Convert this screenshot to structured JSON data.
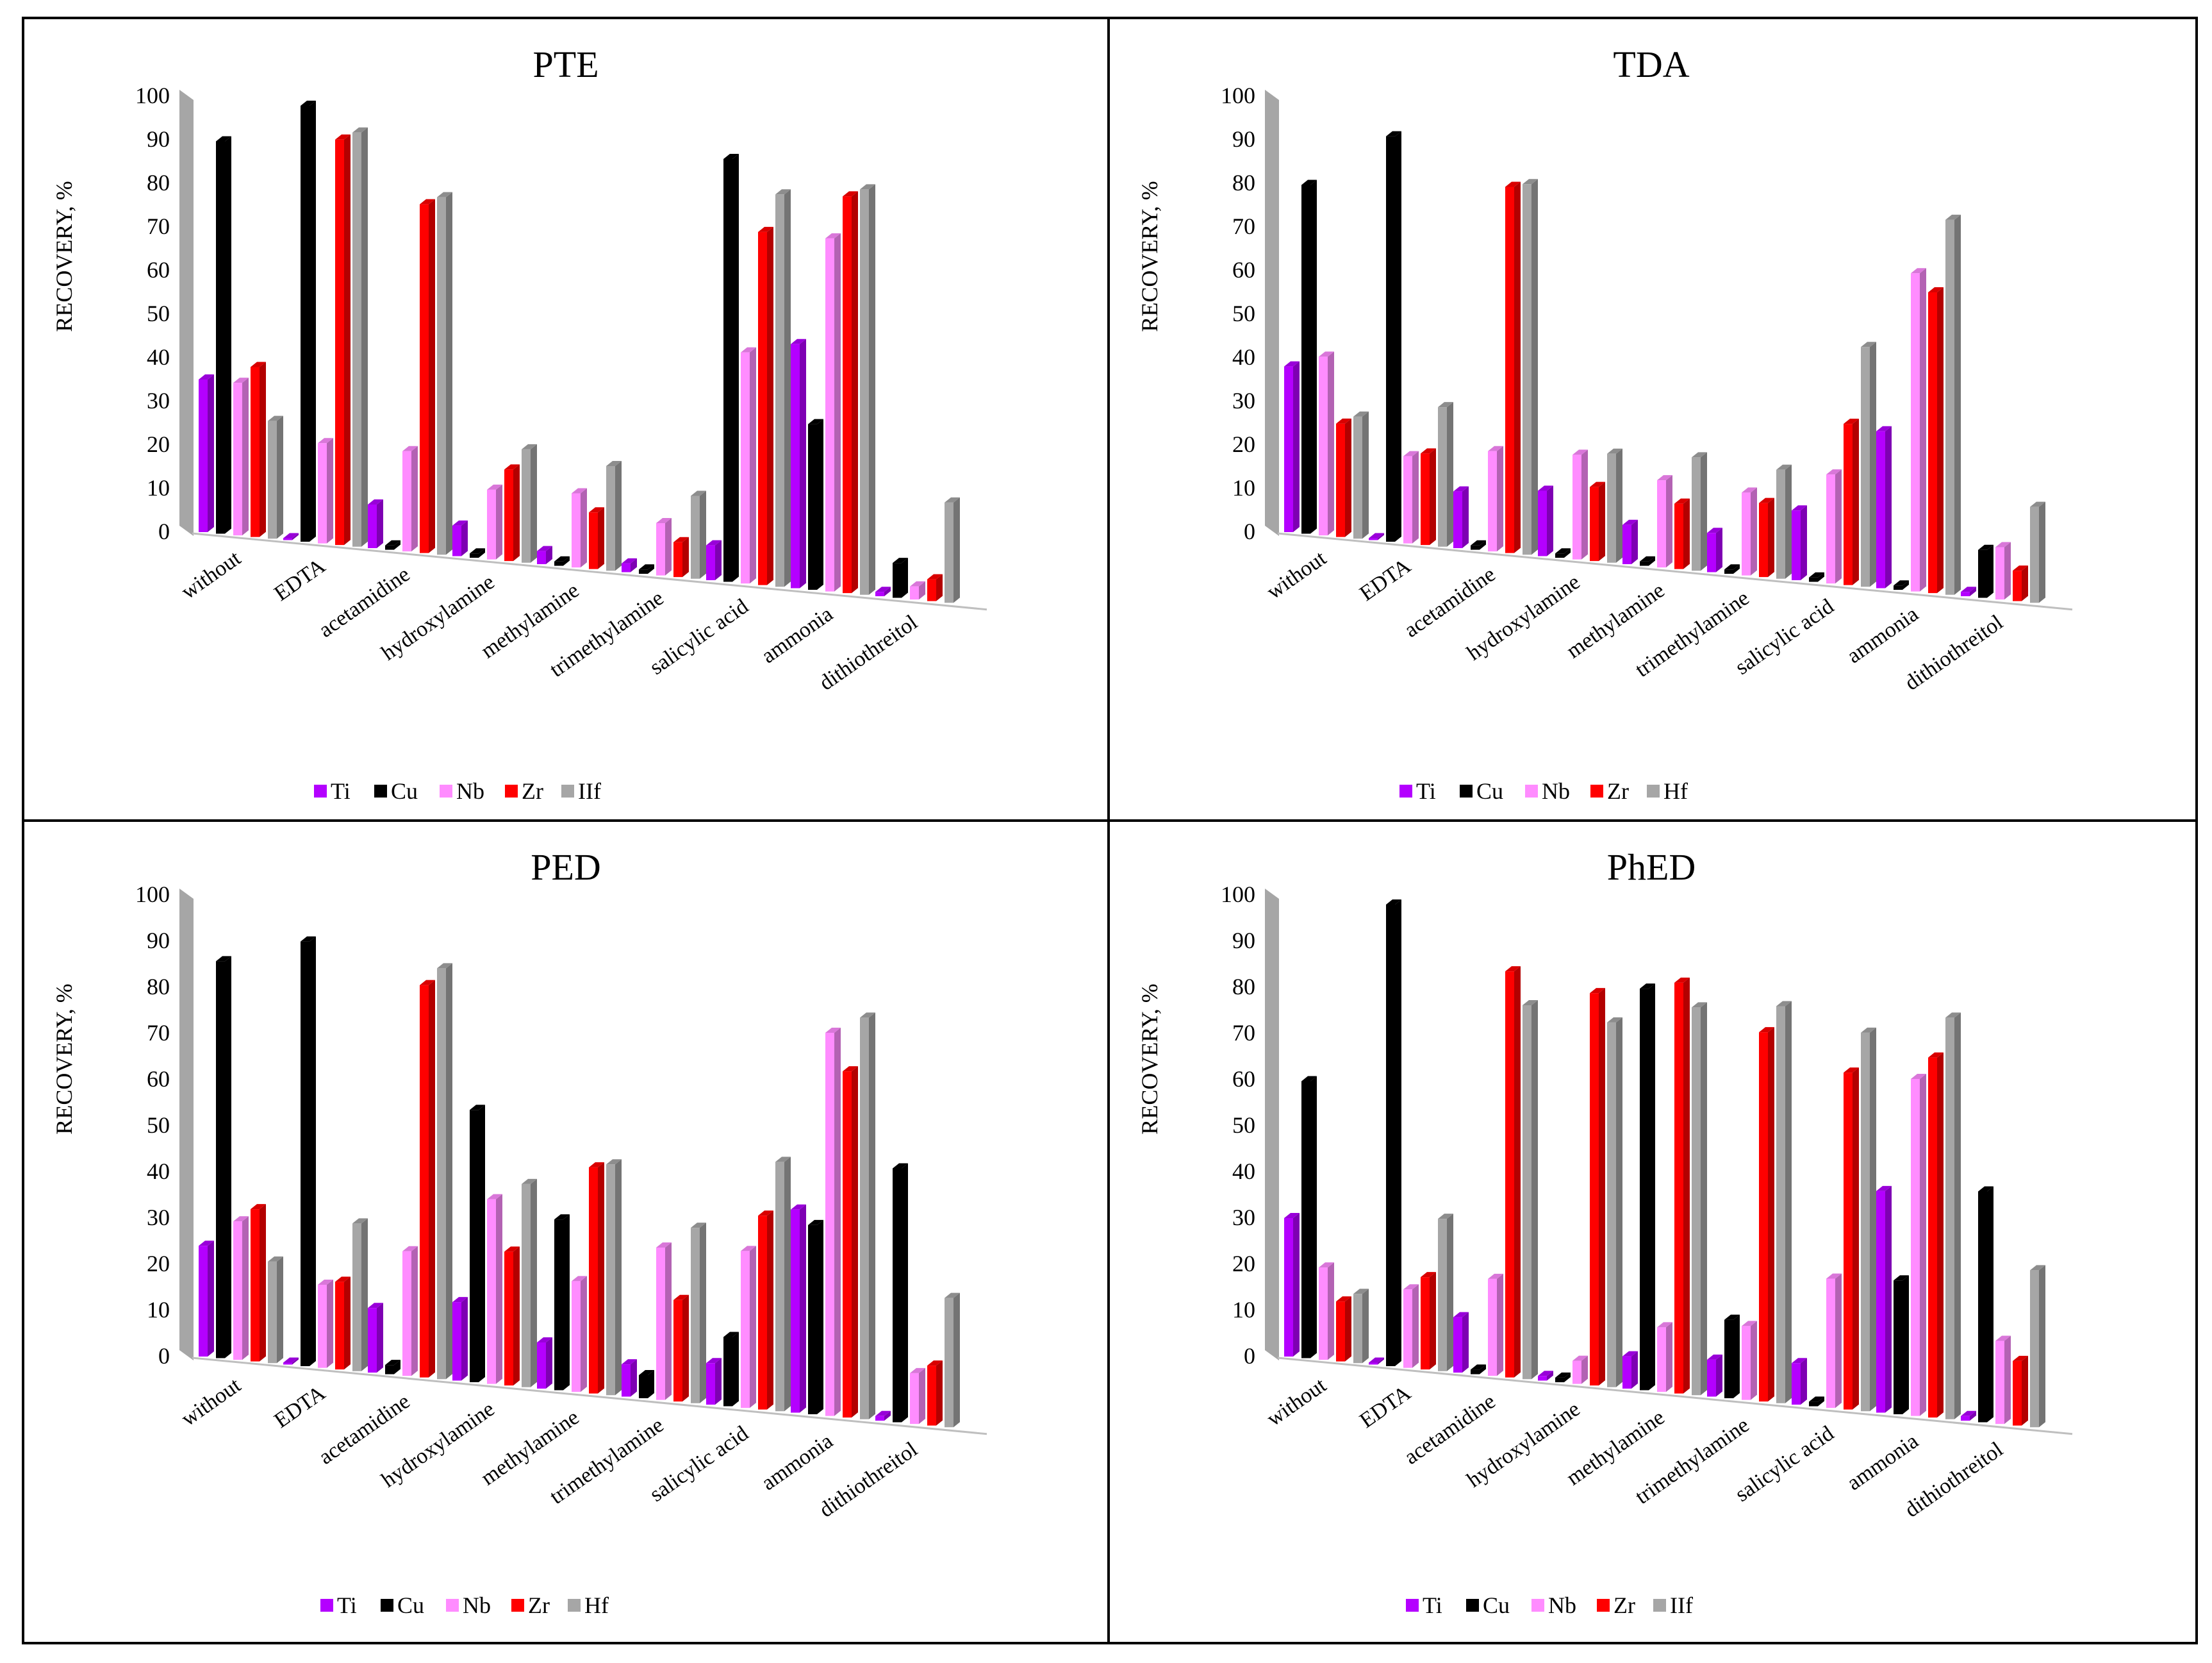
{
  "figure": {
    "border_color": "#000000"
  },
  "colors": {
    "Ti": "#b400ff",
    "Cu": "#000000",
    "Nb": "#ff8cff",
    "Zr": "#ff0000",
    "Hf": "#a6a6a6"
  },
  "chart_data": [
    {
      "type": "bar",
      "title": "PTE",
      "ylabel": "RECOVERY, %",
      "ylim": [
        0,
        100
      ],
      "yticks": [
        "0",
        "10",
        "20",
        "30",
        "40",
        "50",
        "60",
        "70",
        "80",
        "90",
        "100"
      ],
      "legend_position": "bottom",
      "legend_labels": [
        "Ti",
        "Cu",
        "Nb",
        "Zr",
        "IIf"
      ],
      "categories": [
        "without",
        "EDTA",
        "acetamidine",
        "hydroxylamine",
        "methylamine",
        "trimethylamine",
        "salicylic acid",
        "ammonia",
        "dithiothreitol"
      ],
      "series": [
        {
          "name": "Ti",
          "values": [
            35,
            0,
            10,
            7,
            3,
            2,
            8,
            56,
            1
          ]
        },
        {
          "name": "Cu",
          "values": [
            90,
            100,
            1,
            1,
            1,
            1,
            97,
            38,
            8
          ]
        },
        {
          "name": "Nb",
          "values": [
            35,
            23,
            23,
            16,
            17,
            12,
            53,
            81,
            3
          ]
        },
        {
          "name": "Zr",
          "values": [
            39,
            93,
            80,
            21,
            13,
            8,
            81,
            91,
            5
          ]
        },
        {
          "name": "Hf",
          "values": [
            27,
            95,
            82,
            26,
            24,
            19,
            90,
            93,
            23
          ]
        }
      ]
    },
    {
      "type": "bar",
      "title": "TDA",
      "ylabel": "RECOVERY, %",
      "ylim": [
        0,
        100
      ],
      "yticks": [
        "0",
        "10",
        "20",
        "30",
        "40",
        "50",
        "60",
        "70",
        "80",
        "90",
        "100"
      ],
      "legend_position": "bottom",
      "legend_labels": [
        "Ti",
        "Cu",
        "Nb",
        "Zr",
        "Hf"
      ],
      "categories": [
        "without",
        "EDTA",
        "acetamidine",
        "hydroxylamine",
        "methylamine",
        "trimethylamine",
        "salicylic acid",
        "ammonia",
        "dithiothreitol"
      ],
      "series": [
        {
          "name": "Ti",
          "values": [
            38,
            0,
            13,
            15,
            9,
            9,
            16,
            36,
            1
          ]
        },
        {
          "name": "Cu",
          "values": [
            80,
            93,
            1,
            1,
            1,
            1,
            1,
            1,
            11
          ]
        },
        {
          "name": "Nb",
          "values": [
            41,
            20,
            23,
            24,
            20,
            19,
            25,
            73,
            12
          ]
        },
        {
          "name": "Zr",
          "values": [
            26,
            21,
            84,
            17,
            15,
            17,
            37,
            69,
            7
          ]
        },
        {
          "name": "Hf",
          "values": [
            28,
            32,
            85,
            25,
            26,
            25,
            55,
            86,
            22
          ]
        }
      ]
    },
    {
      "type": "bar",
      "title": "PED",
      "ylabel": "RECOVERY,  %",
      "ylim": [
        0,
        100
      ],
      "yticks": [
        "0",
        "10",
        "20",
        "30",
        "40",
        "50",
        "60",
        "70",
        "80",
        "90",
        "100"
      ],
      "legend_position": "bottom",
      "legend_labels": [
        "Ti",
        "Cu",
        "Nb",
        "Zr",
        "Hf"
      ],
      "categories": [
        "without",
        "EDTA",
        "acetamidine",
        "hydroxylamine",
        "methylamine",
        "trimethylamine",
        "salicylic acid",
        "ammonia",
        "dithiothreitol"
      ],
      "series": [
        {
          "name": "Ti",
          "values": [
            24,
            0,
            14,
            17,
            10,
            7,
            9,
            44,
            1
          ]
        },
        {
          "name": "Cu",
          "values": [
            86,
            92,
            2,
            59,
            37,
            5,
            15,
            41,
            55
          ]
        },
        {
          "name": "Nb",
          "values": [
            30,
            18,
            27,
            40,
            24,
            33,
            34,
            83,
            11
          ]
        },
        {
          "name": "Zr",
          "values": [
            33,
            19,
            85,
            29,
            49,
            22,
            42,
            75,
            13
          ]
        },
        {
          "name": "Hf",
          "values": [
            22,
            32,
            89,
            44,
            50,
            38,
            54,
            87,
            28
          ]
        }
      ]
    },
    {
      "type": "bar",
      "title": "PhED",
      "ylabel": "RECOVERY, %",
      "ylim": [
        0,
        100
      ],
      "yticks": [
        "0",
        "10",
        "20",
        "30",
        "40",
        "50",
        "60",
        "70",
        "80",
        "90",
        "100"
      ],
      "legend_position": "bottom",
      "legend_labels": [
        "Ti",
        "Cu",
        "Nb",
        "Zr",
        "IIf"
      ],
      "categories": [
        "without",
        "EDTA",
        "acetamidine",
        "hydroxylamine",
        "methylamine",
        "trimethylamine",
        "salicylic acid",
        "ammonia",
        "dithiothreitol"
      ],
      "series": [
        {
          "name": "Ti",
          "values": [
            30,
            0,
            12,
            1,
            7,
            8,
            9,
            48,
            1
          ]
        },
        {
          "name": "Cu",
          "values": [
            60,
            100,
            1,
            1,
            87,
            17,
            1,
            29,
            50
          ]
        },
        {
          "name": "Nb",
          "values": [
            20,
            17,
            21,
            5,
            14,
            16,
            28,
            73,
            18
          ]
        },
        {
          "name": "Zr",
          "values": [
            13,
            20,
            88,
            85,
            89,
            80,
            73,
            78,
            14
          ]
        },
        {
          "name": "Hf",
          "values": [
            15,
            33,
            81,
            79,
            84,
            86,
            82,
            87,
            34
          ]
        }
      ]
    }
  ]
}
